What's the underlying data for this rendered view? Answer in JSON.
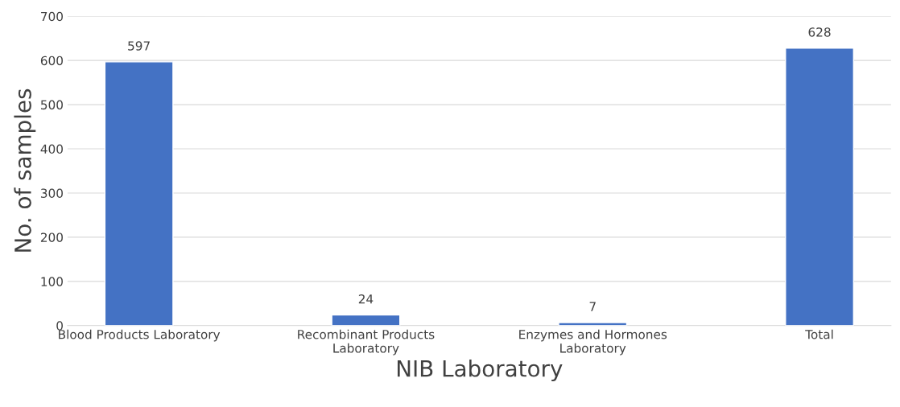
{
  "chart_data": {
    "type": "bar",
    "xlabel": "NIB Laboratory",
    "ylabel": "No. of samples",
    "categories": [
      "Blood Products Laboratory",
      "Recombinant Products\nLaboratory",
      "Enzymes and Hormones\nLaboratory",
      "Total"
    ],
    "values": [
      597,
      24,
      7,
      628
    ],
    "color": "#4472c4",
    "ylim": [
      0,
      700
    ],
    "yticks": [
      0,
      100,
      200,
      300,
      400,
      500,
      600,
      700
    ],
    "grid": "y",
    "data_labels": true
  }
}
